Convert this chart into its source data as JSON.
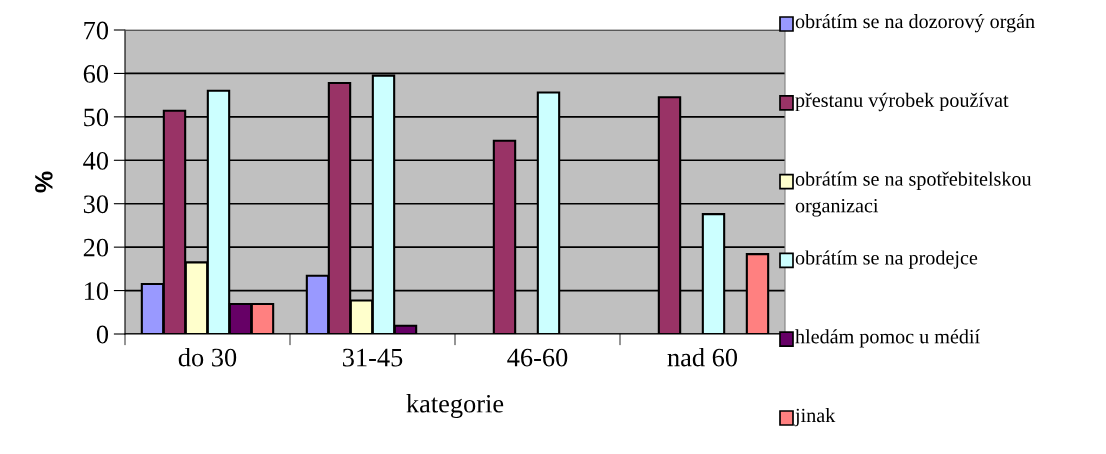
{
  "chart_data": {
    "type": "bar",
    "xlabel": "kategorie",
    "ylabel": "%",
    "categories": [
      "do 30",
      "31-45",
      "46-60",
      "nad 60"
    ],
    "series": [
      {
        "name": "obrátím se na dozorový orgán",
        "color": "#9999ff",
        "values": [
          11.5,
          13.4,
          null,
          null
        ]
      },
      {
        "name": "přestanu výrobek používat",
        "color": "#993366",
        "values": [
          51.4,
          57.8,
          44.5,
          54.5
        ]
      },
      {
        "name": "obrátím se na spotřebitelskou organizaci",
        "color": "#ffffcc",
        "values": [
          16.5,
          7.7,
          null,
          null
        ]
      },
      {
        "name": "obrátím se na prodejce",
        "color": "#ccffff",
        "values": [
          56.0,
          59.5,
          55.6,
          27.6
        ]
      },
      {
        "name": "hledám pomoc u médií",
        "color": "#660066",
        "values": [
          6.9,
          1.9,
          null,
          null
        ]
      },
      {
        "name": "jinak",
        "color": "#ff8080",
        "values": [
          6.9,
          null,
          null,
          18.4
        ]
      }
    ],
    "ylim": [
      0,
      70
    ],
    "yticks": [
      0,
      10,
      20,
      30,
      40,
      50,
      60,
      70
    ],
    "grid": "y",
    "legend": "right"
  }
}
